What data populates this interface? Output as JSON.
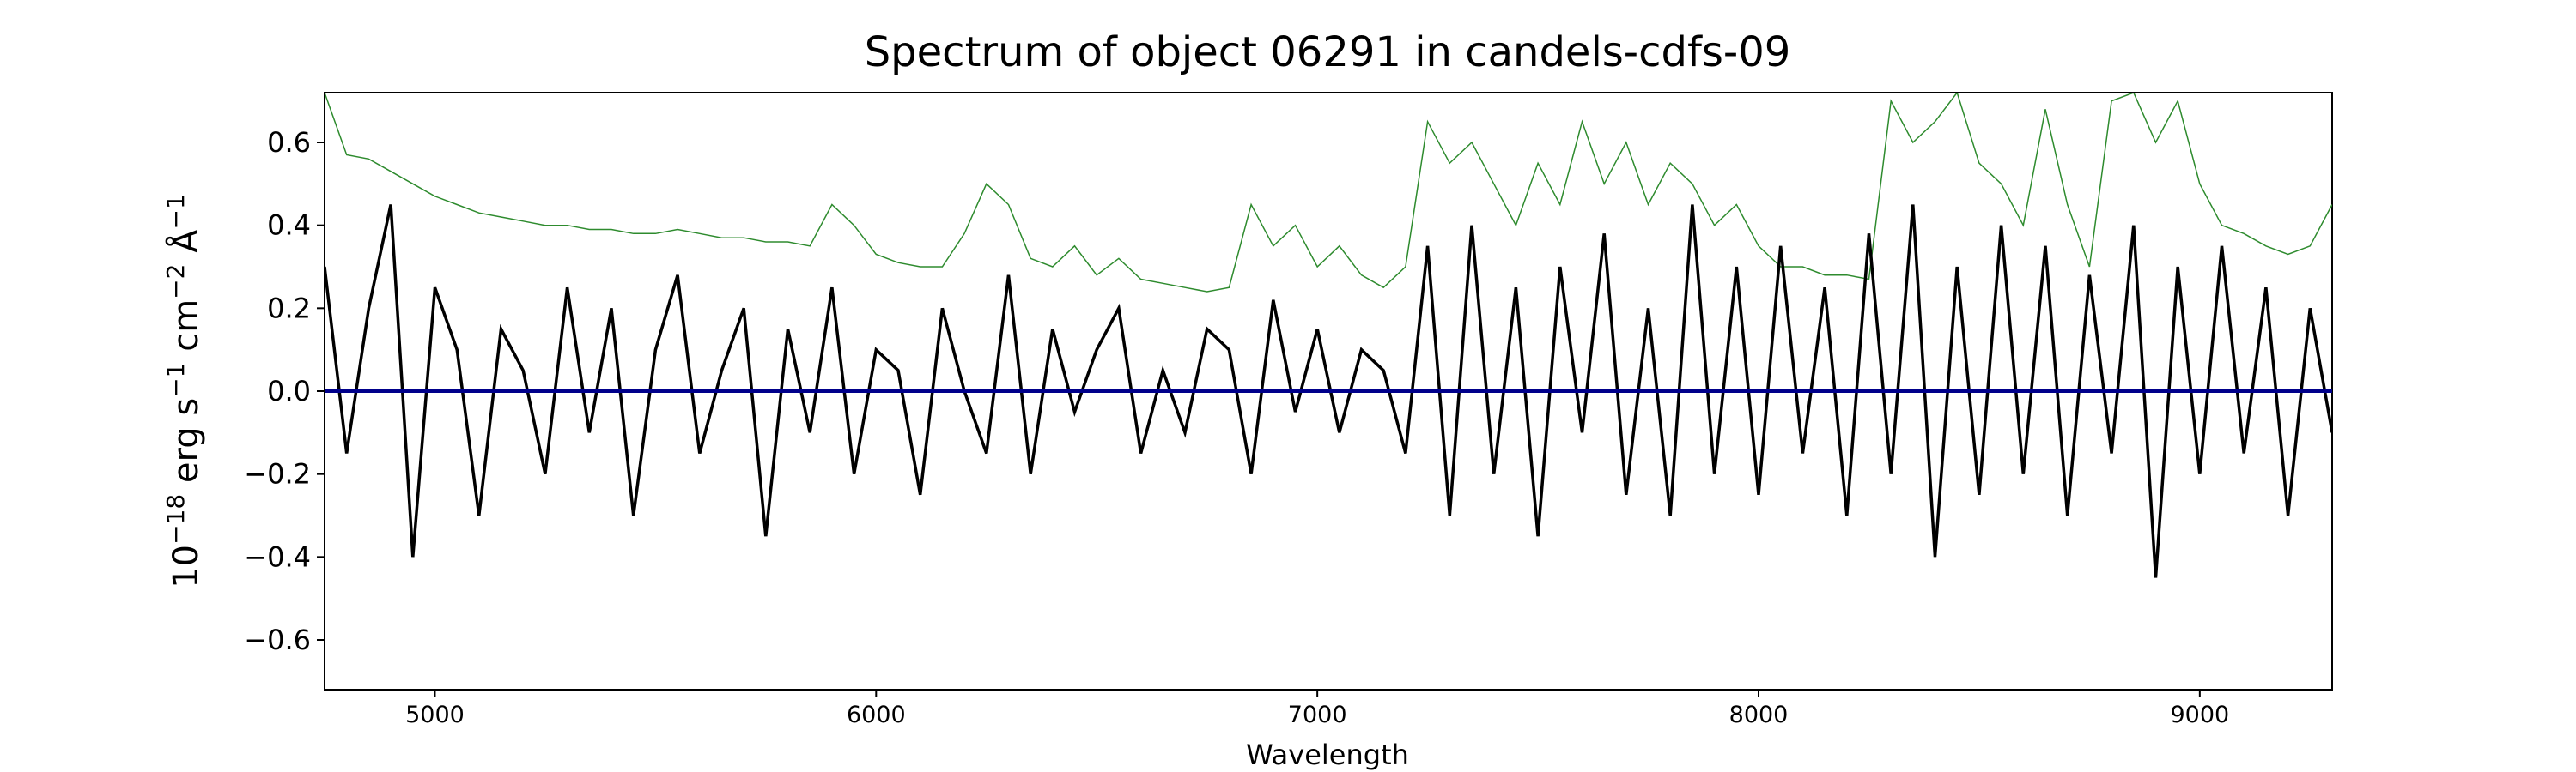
{
  "chart_data": {
    "type": "line",
    "title": "Spectrum of object 06291 in candels-cdfs-09",
    "xlabel": "Wavelength",
    "ylabel_parts": {
      "base": "10",
      "exp1": "−18",
      "erg": " erg s",
      "exp2": "−1",
      "cm": " cm",
      "exp3": "−2",
      "ang": " Å",
      "exp4": "−1"
    },
    "xlim": [
      4750,
      9300
    ],
    "ylim": [
      -0.72,
      0.72
    ],
    "x_ticks": [
      5000,
      6000,
      7000,
      8000,
      9000
    ],
    "y_ticks": [
      -0.6,
      -0.4,
      -0.2,
      0.0,
      0.2,
      0.4,
      0.6
    ],
    "x_tick_labels": [
      "5000",
      "6000",
      "7000",
      "8000",
      "9000"
    ],
    "y_tick_labels": [
      "−0.6",
      "−0.4",
      "−0.2",
      "0.0",
      "0.2",
      "0.4",
      "0.6"
    ],
    "grid": false,
    "legend": "none",
    "colors": {
      "flux": "#000000",
      "noise": "#2e8b2e",
      "zero": "#00008b"
    },
    "series": [
      {
        "x": [
          4750,
          4800,
          4850,
          4900,
          4950,
          5000,
          5050,
          5100,
          5150,
          5200,
          5250,
          5300,
          5350,
          5400,
          5450,
          5500,
          5550,
          5600,
          5650,
          5700,
          5750,
          5800,
          5850,
          5900,
          5950,
          6000,
          6050,
          6100,
          6150,
          6200,
          6250,
          6300,
          6350,
          6400,
          6450,
          6500,
          6550,
          6600,
          6650,
          6700,
          6750,
          6800,
          6850,
          6900,
          6950,
          7000,
          7050,
          7100,
          7150,
          7200,
          7250,
          7300,
          7350,
          7400,
          7450,
          7500,
          7550,
          7600,
          7650,
          7700,
          7750,
          7800,
          7850,
          7900,
          7950,
          8000,
          8050,
          8100,
          8150,
          8200,
          8250,
          8300,
          8350,
          8400,
          8450,
          8500,
          8550,
          8600,
          8650,
          8700,
          8750,
          8800,
          8850,
          8900,
          8950,
          9000,
          9050,
          9100,
          9150,
          9200,
          9250,
          9300
        ],
        "y": [
          0.3,
          -0.15,
          0.2,
          0.45,
          -0.4,
          0.25,
          0.1,
          -0.3,
          0.15,
          0.05,
          -0.2,
          0.25,
          -0.1,
          0.2,
          -0.3,
          0.1,
          0.28,
          -0.15,
          0.05,
          0.2,
          -0.35,
          0.15,
          -0.1,
          0.25,
          -0.2,
          0.1,
          0.05,
          -0.25,
          0.2,
          0.0,
          -0.15,
          0.28,
          -0.2,
          0.15,
          -0.05,
          0.1,
          0.2,
          -0.15,
          0.05,
          -0.1,
          0.15,
          0.1,
          -0.2,
          0.22,
          -0.05,
          0.15,
          -0.1,
          0.1,
          0.05,
          -0.15,
          0.35,
          -0.3,
          0.4,
          -0.2,
          0.25,
          -0.35,
          0.3,
          -0.1,
          0.38,
          -0.25,
          0.2,
          -0.3,
          0.45,
          -0.2,
          0.3,
          -0.25,
          0.35,
          -0.15,
          0.25,
          -0.3,
          0.38,
          -0.2,
          0.45,
          -0.4,
          0.3,
          -0.25,
          0.4,
          -0.2,
          0.35,
          -0.3,
          0.28,
          -0.15,
          0.4,
          -0.45,
          0.3,
          -0.2,
          0.35,
          -0.15,
          0.25,
          -0.3,
          0.2,
          -0.1
        ]
      },
      {
        "x": [
          4750,
          4800,
          4850,
          4900,
          4950,
          5000,
          5050,
          5100,
          5150,
          5200,
          5250,
          5300,
          5350,
          5400,
          5450,
          5500,
          5550,
          5600,
          5650,
          5700,
          5750,
          5800,
          5850,
          5900,
          5950,
          6000,
          6050,
          6100,
          6150,
          6200,
          6250,
          6300,
          6350,
          6400,
          6450,
          6500,
          6550,
          6600,
          6650,
          6700,
          6750,
          6800,
          6850,
          6900,
          6950,
          7000,
          7050,
          7100,
          7150,
          7200,
          7250,
          7300,
          7350,
          7400,
          7450,
          7500,
          7550,
          7600,
          7650,
          7700,
          7750,
          7800,
          7850,
          7900,
          7950,
          8000,
          8050,
          8100,
          8150,
          8200,
          8250,
          8300,
          8350,
          8400,
          8450,
          8500,
          8550,
          8600,
          8650,
          8700,
          8750,
          8800,
          8850,
          8900,
          8950,
          9000,
          9050,
          9100,
          9150,
          9200,
          9250,
          9300
        ],
        "y": [
          0.72,
          0.57,
          0.56,
          0.53,
          0.5,
          0.47,
          0.45,
          0.43,
          0.42,
          0.41,
          0.4,
          0.4,
          0.39,
          0.39,
          0.38,
          0.38,
          0.39,
          0.38,
          0.37,
          0.37,
          0.36,
          0.36,
          0.35,
          0.45,
          0.4,
          0.33,
          0.31,
          0.3,
          0.3,
          0.38,
          0.5,
          0.45,
          0.32,
          0.3,
          0.35,
          0.28,
          0.32,
          0.27,
          0.26,
          0.25,
          0.24,
          0.25,
          0.45,
          0.35,
          0.4,
          0.3,
          0.35,
          0.28,
          0.25,
          0.3,
          0.65,
          0.55,
          0.6,
          0.5,
          0.4,
          0.55,
          0.45,
          0.65,
          0.5,
          0.6,
          0.45,
          0.55,
          0.5,
          0.4,
          0.45,
          0.35,
          0.3,
          0.3,
          0.28,
          0.28,
          0.27,
          0.7,
          0.6,
          0.65,
          0.72,
          0.55,
          0.5,
          0.4,
          0.68,
          0.45,
          0.3,
          0.7,
          0.72,
          0.6,
          0.7,
          0.5,
          0.4,
          0.38,
          0.35,
          0.33,
          0.35,
          0.45
        ]
      },
      {
        "x": [
          4750,
          9300
        ],
        "y": [
          0.0,
          0.0
        ]
      }
    ]
  }
}
